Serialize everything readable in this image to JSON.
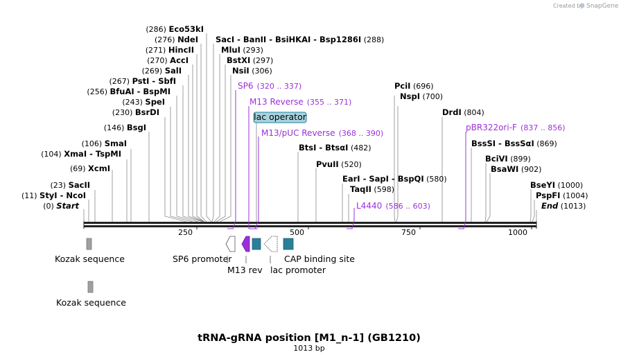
{
  "brand": {
    "created_by": "Created by",
    "name": "SnapGene"
  },
  "title": "tRNA-gRNA position [M1_n-1] (GB1210)",
  "subtitle": "1013 bp",
  "length": 1013,
  "ticks": [
    "250",
    "500",
    "750",
    "1000"
  ],
  "enzymes": [
    {
      "pos": "(286)",
      "name": "Eco53kI"
    },
    {
      "pos": "(276)",
      "name": "NdeI"
    },
    {
      "pos": "(271)",
      "name": "HincII"
    },
    {
      "pos": "(270)",
      "name": "AccI"
    },
    {
      "pos": "(269)",
      "name": "SalI"
    },
    {
      "pos": "(267)",
      "name": "PstI",
      "name2": "SbfI"
    },
    {
      "pos": "(256)",
      "name": "BfuAI",
      "name2": "BspMI"
    },
    {
      "pos": "(243)",
      "name": "SpeI"
    },
    {
      "pos": "(230)",
      "name": "BsrDI"
    },
    {
      "pos": "(146)",
      "name": "BsgI"
    },
    {
      "pos": "(106)",
      "name": "SmaI"
    },
    {
      "pos": "(104)",
      "name": "XmaI",
      "name2": "TspMI"
    },
    {
      "pos": "(69)",
      "name": "XcmI"
    },
    {
      "pos": "(23)",
      "name": "SacII"
    },
    {
      "pos": "(11)",
      "name": "StyI",
      "name2": "NcoI"
    },
    {
      "pos": "(0)",
      "name": "Start"
    },
    {
      "pos": "(288)",
      "name": "SacI",
      "name2": "BanII",
      "name3": "BsiHKAI",
      "name4": "Bsp1286I"
    },
    {
      "pos": "(293)",
      "name": "MluI"
    },
    {
      "pos": "(297)",
      "name": "BstXI"
    },
    {
      "pos": "(306)",
      "name": "NsiI"
    },
    {
      "pos": "(696)",
      "name": "PciI"
    },
    {
      "pos": "(700)",
      "name": "NspI"
    },
    {
      "pos": "(804)",
      "name": "DrdI"
    },
    {
      "pos": "(482)",
      "name": "BtsI",
      "name2": "BtsαI"
    },
    {
      "pos": "(520)",
      "name": "PvuII"
    },
    {
      "pos": "(580)",
      "name": "EarI",
      "name2": "SapI",
      "name3": "BspQI"
    },
    {
      "pos": "(598)",
      "name": "TaqII"
    },
    {
      "pos": "(869)",
      "name": "BssSI",
      "name2": "BssSαI"
    },
    {
      "pos": "(899)",
      "name": "BciVI"
    },
    {
      "pos": "(902)",
      "name": "BsaWI"
    },
    {
      "pos": "(1000)",
      "name": "BseYI"
    },
    {
      "pos": "(1004)",
      "name": "PspFI"
    },
    {
      "pos": "(1013)",
      "name": "End"
    }
  ],
  "primers": [
    {
      "name": "SP6",
      "range": "(320 .. 337)"
    },
    {
      "name": "M13 Reverse",
      "range": "(355 .. 371)"
    },
    {
      "name": "M13/pUC Reverse",
      "range": "(368 .. 390)"
    },
    {
      "name": "L4440",
      "range": "(586 .. 603)"
    },
    {
      "name": "pBR322ori-F",
      "range": "(837 .. 856)"
    }
  ],
  "features": {
    "lac_operator": "lac operator",
    "kozak1": "Kozak sequence",
    "kozak2": "Kozak sequence",
    "sp6_promoter": "SP6 promoter",
    "m13_rev": "M13 rev",
    "lac_promoter": "lac promoter",
    "cap_site": "CAP binding site"
  },
  "colors": {
    "primer": "#9b30d9",
    "feature_teal": "#2a7f99",
    "feature_gray": "#999999",
    "operator_fill": "#a7d3de"
  }
}
